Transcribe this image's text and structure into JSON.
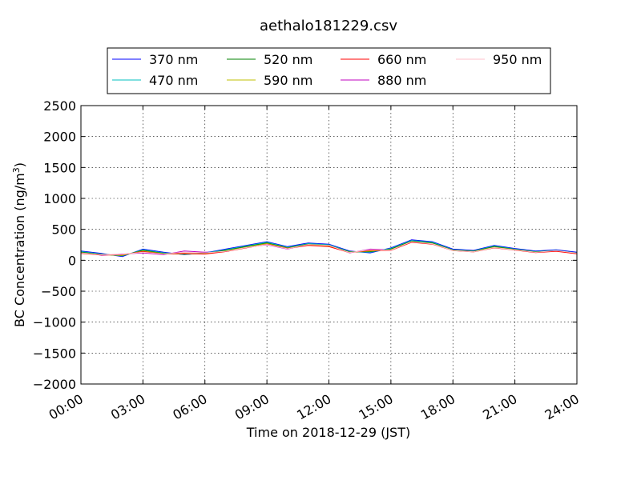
{
  "chart_data": {
    "type": "line",
    "title": "aethalo181229.csv",
    "xlabel": "Time on 2018-12-29 (JST)",
    "ylabel_main": "BC Concentration (ng/m",
    "ylabel_sup": "3",
    "ylabel_close": ")",
    "xlim_hours": [
      0,
      24
    ],
    "ylim": [
      -2000,
      2500
    ],
    "x_ticks": [
      "00:00",
      "03:00",
      "06:00",
      "09:00",
      "12:00",
      "15:00",
      "18:00",
      "21:00",
      "24:00"
    ],
    "y_ticks": [
      "2500",
      "2000",
      "1500",
      "1000",
      "500",
      "0",
      "−500",
      "−1000",
      "−1500",
      "−2000"
    ],
    "grid": true,
    "legend_position": "top-center",
    "series": [
      {
        "name": "370 nm",
        "color": "#0000ff",
        "values": [
          150,
          110,
          60,
          180,
          130,
          90,
          120,
          180,
          240,
          300,
          220,
          280,
          260,
          150,
          120,
          200,
          330,
          300,
          180,
          160,
          240,
          190,
          150,
          170,
          130
        ]
      },
      {
        "name": "470 nm",
        "color": "#00bfbf",
        "values": [
          140,
          100,
          70,
          170,
          120,
          95,
          115,
          170,
          230,
          290,
          210,
          270,
          250,
          140,
          130,
          190,
          320,
          290,
          170,
          150,
          230,
          180,
          140,
          160,
          120
        ]
      },
      {
        "name": "520 nm",
        "color": "#008000",
        "values": [
          130,
          95,
          75,
          160,
          110,
          100,
          110,
          160,
          220,
          280,
          200,
          260,
          240,
          135,
          140,
          180,
          310,
          280,
          165,
          145,
          220,
          175,
          135,
          155,
          115
        ]
      },
      {
        "name": "590 nm",
        "color": "#bfbf00",
        "values": [
          120,
          90,
          80,
          150,
          105,
          105,
          105,
          150,
          210,
          270,
          195,
          250,
          230,
          130,
          150,
          170,
          300,
          270,
          160,
          140,
          210,
          170,
          130,
          150,
          110
        ]
      },
      {
        "name": "660 nm",
        "color": "#ff0000",
        "values": [
          110,
          85,
          90,
          140,
          100,
          110,
          100,
          140,
          200,
          260,
          190,
          240,
          220,
          125,
          160,
          160,
          290,
          260,
          155,
          135,
          200,
          165,
          125,
          145,
          105
        ]
      },
      {
        "name": "880 nm",
        "color": "#bf00bf",
        "values": [
          130,
          80,
          100,
          120,
          90,
          150,
          130,
          140,
          210,
          250,
          180,
          260,
          250,
          120,
          180,
          170,
          310,
          270,
          160,
          140,
          210,
          170,
          130,
          160,
          120
        ]
      },
      {
        "name": "950 nm",
        "color": "#ffc0cb",
        "values": [
          120,
          90,
          95,
          130,
          100,
          130,
          120,
          145,
          205,
          255,
          185,
          255,
          240,
          125,
          170,
          165,
          300,
          265,
          158,
          138,
          205,
          168,
          128,
          155,
          115
        ]
      }
    ]
  }
}
